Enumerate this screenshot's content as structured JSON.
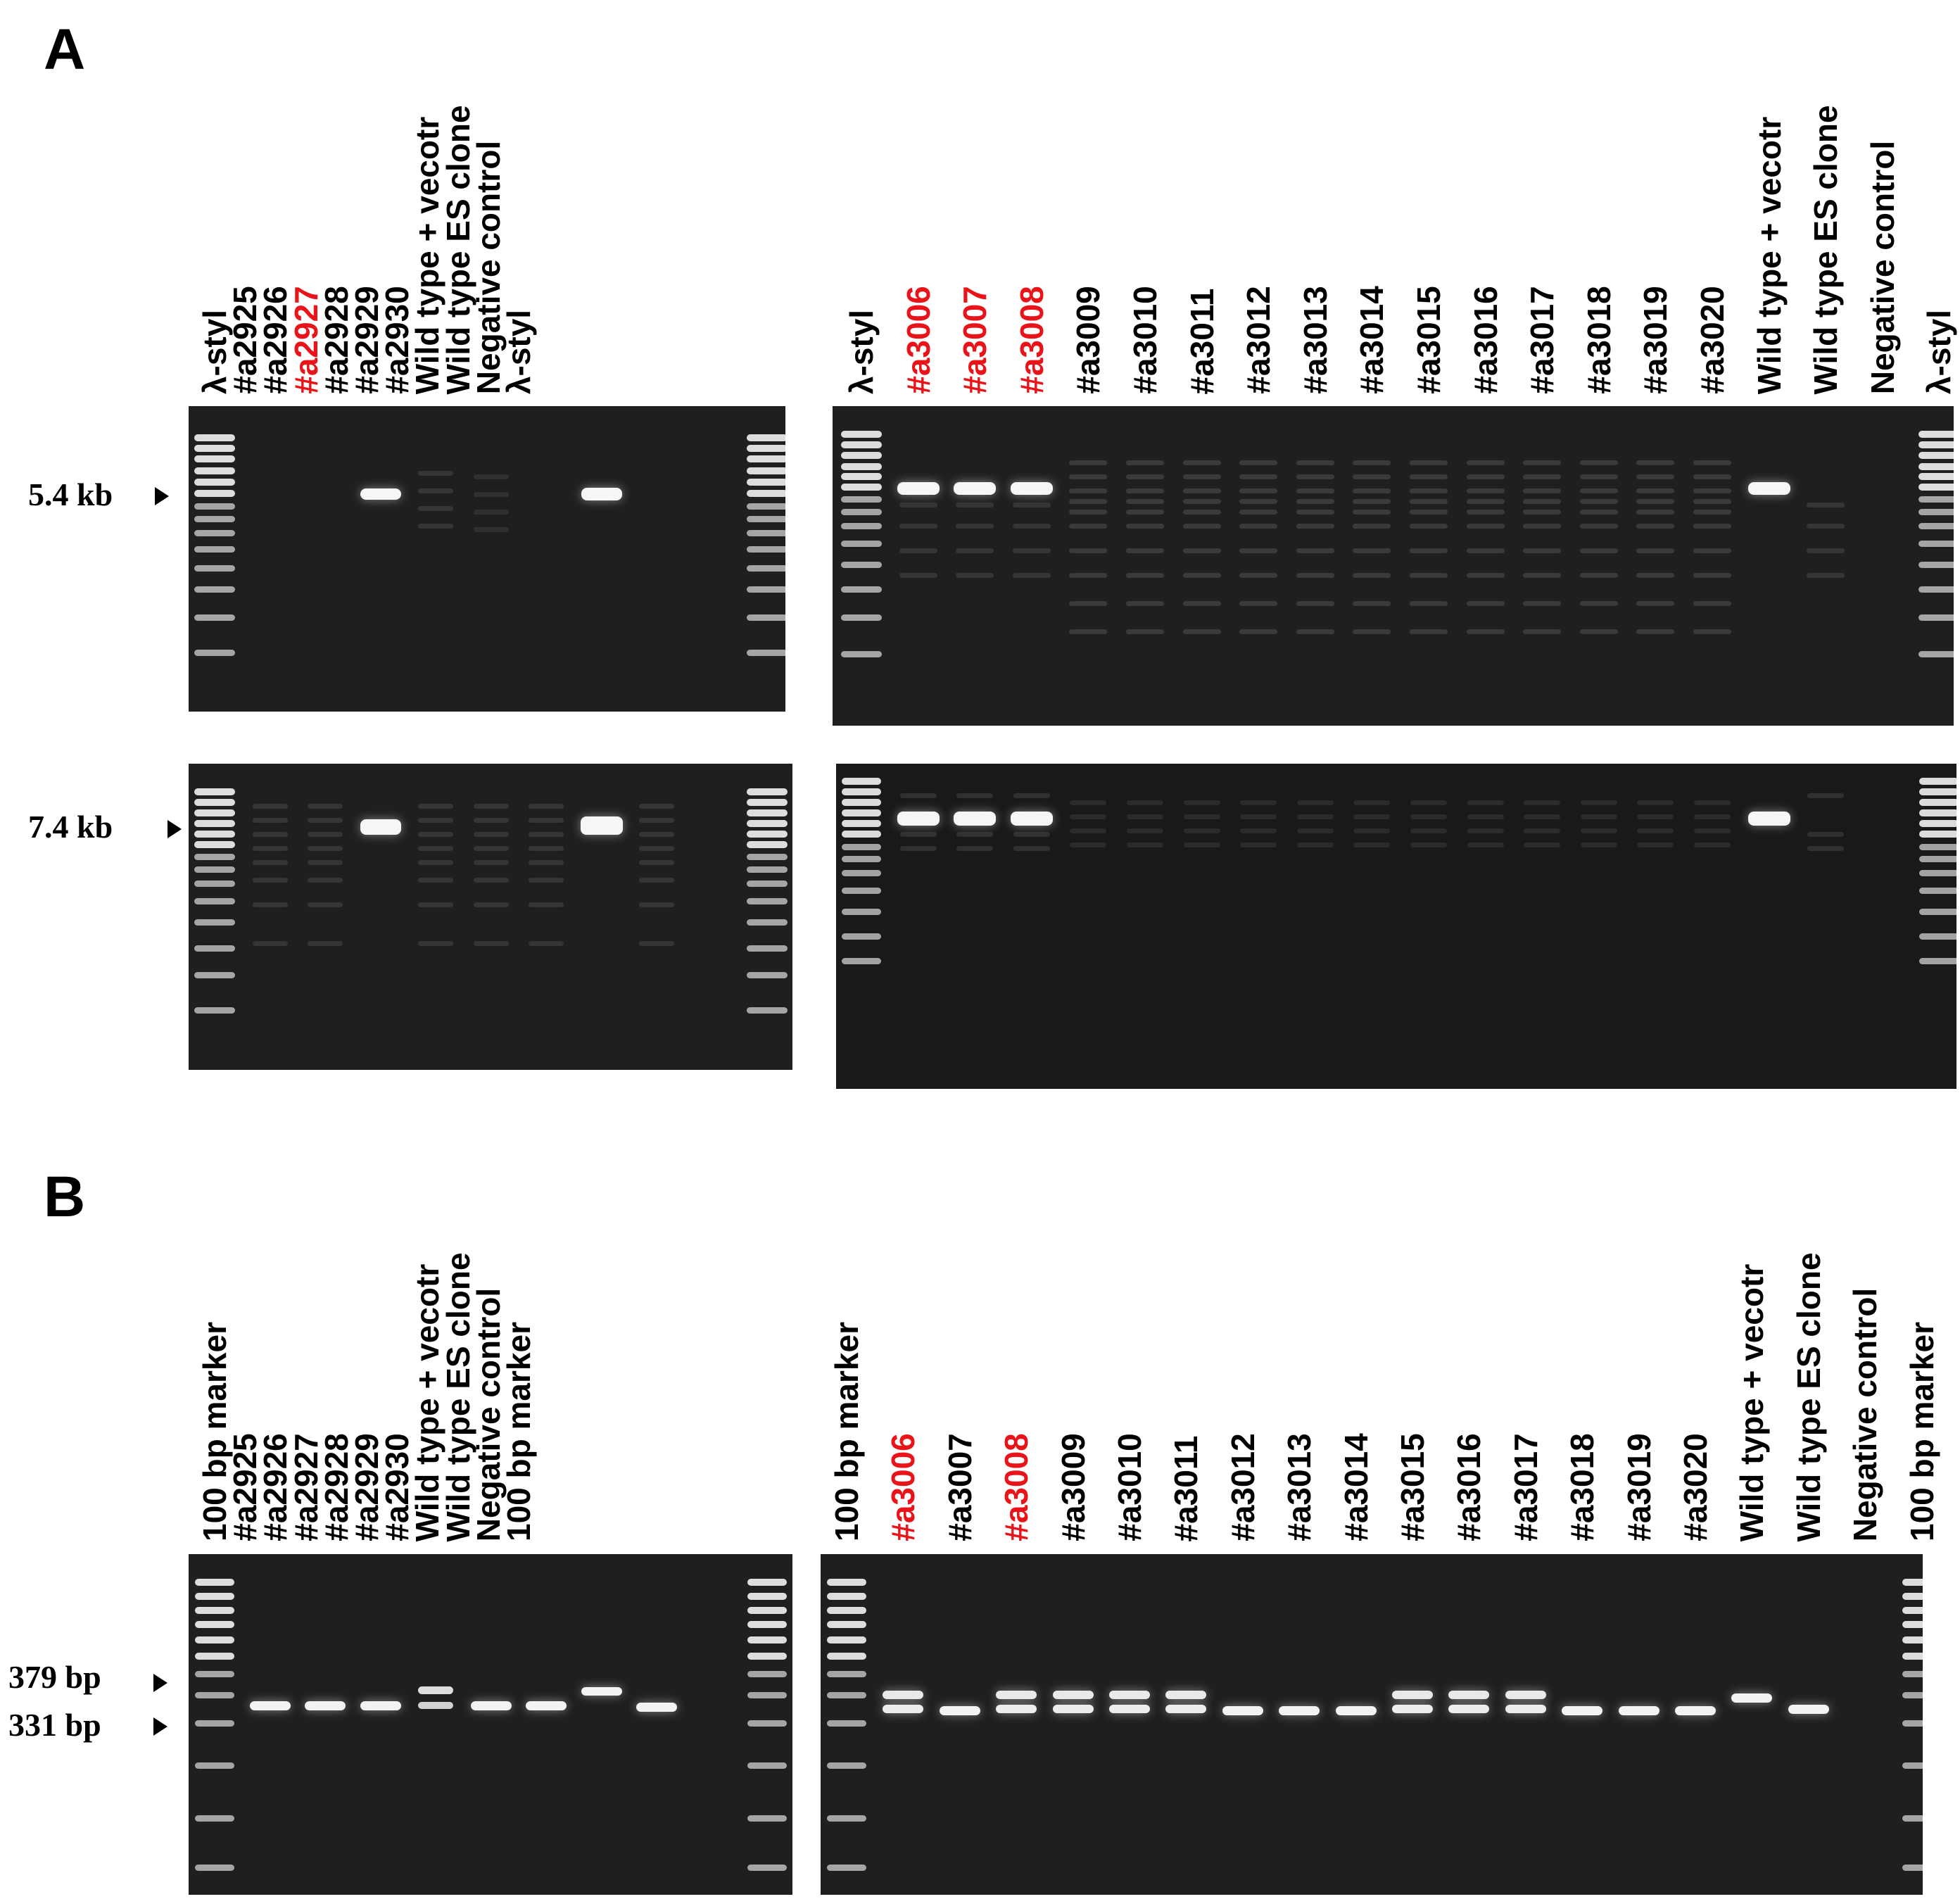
{
  "panels": {
    "A": {
      "letter": "A",
      "gel_left_lanes": [
        "λ-styl",
        "#a2925",
        "#a2926",
        "#a2927",
        "#a2928",
        "#a2929",
        "#a2930",
        "Wild type + vecotr",
        "Wild type  ES clone",
        "Negative control",
        "λ-styl"
      ],
      "gel_right_lanes": [
        "λ-styl",
        "#a3006",
        "#a3007",
        "#a3008",
        "#a3009",
        "#a3010",
        "#a3011",
        "#a3012",
        "#a3013",
        "#a3014",
        "#a3015",
        "#a3016",
        "#a3017",
        "#a3018",
        "#a3019",
        "#a3020",
        "Wild type + vecotr",
        "Wild type ES clone",
        "Negative control",
        "λ-styl"
      ],
      "highlighted_left": [
        "#a2927"
      ],
      "highlighted_right": [
        "#a3006",
        "#a3007",
        "#a3008"
      ],
      "size_upper": "5.4 kb",
      "size_lower": "7.4 kb"
    },
    "B": {
      "letter": "B",
      "gel_left_lanes": [
        "100  bp marker",
        "#a2925",
        "#a2926",
        "#a2927",
        "#a2928",
        "#a2929",
        "#a2930",
        "Wild type + vecotr",
        "Wild type ES clone",
        "Negative control",
        "100  bp marker"
      ],
      "gel_right_lanes": [
        "100  bp marker",
        "#a3006",
        "#a3007",
        "#a3008",
        "#a3009",
        "#a3010",
        "#a3011",
        "#a3012",
        "#a3013",
        "#a3014",
        "#a3015",
        "#a3016",
        "#a3017",
        "#a3018",
        "#a3019",
        "#a3020",
        "Wild type + vecotr",
        "Wild type ES clone",
        "Negative control",
        "100  bp marker"
      ],
      "highlighted_right": [
        "#a3006",
        "#a3008"
      ],
      "size_upper": "379 bp",
      "size_lower": "331 bp"
    }
  },
  "colors": {
    "label": "#000000",
    "highlight": "#e8141a",
    "gel": "#1f1f1f",
    "band": "#ffffff"
  }
}
